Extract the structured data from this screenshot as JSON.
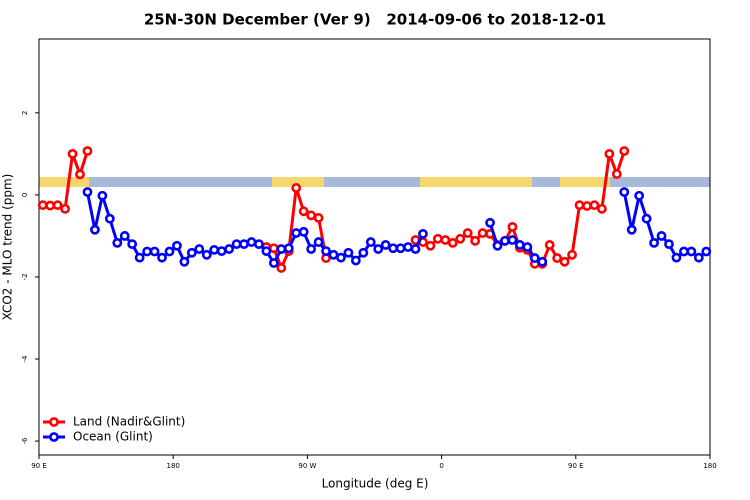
{
  "chart_data": {
    "type": "line",
    "title": "25N-30N December (Ver 9)   2014-09-06 to 2018-12-01",
    "x_label": "Longitude (deg E)",
    "y_label": "XCO2 - MLO trend (ppm)",
    "xlim": [
      90,
      540
    ],
    "ylim": [
      -6.34,
      3.8
    ],
    "xticks": [
      {
        "value": 90,
        "label": "90 E"
      },
      180,
      {
        "value": 270,
        "label": "90 W"
      },
      {
        "value": 360,
        "label": "0"
      },
      {
        "value": 450,
        "label": "90 E"
      },
      {
        "value": 540,
        "label": "180"
      }
    ],
    "yticks": [
      -6,
      -4,
      -2,
      0,
      2
    ],
    "legend": "bottom-left",
    "x": [
      92.5,
      97.5,
      102.5,
      107.5,
      112.5,
      117.5,
      122.5,
      127.5,
      132.5,
      137.5,
      142.5,
      147.5,
      152.5,
      157.5,
      162.5,
      167.5,
      172.5,
      177.5,
      182.5,
      187.5,
      192.5,
      197.5,
      202.5,
      207.5,
      212.5,
      217.5,
      222.5,
      227.5,
      232.5,
      237.5,
      242.5,
      247.5,
      252.5,
      257.5,
      262.5,
      267.5,
      272.5,
      277.5,
      282.5,
      287.5,
      292.5,
      297.5,
      302.5,
      307.5,
      312.5,
      317.5,
      322.5,
      327.5,
      332.5,
      337.5,
      342.5,
      347.5,
      352.5,
      357.5,
      362.5,
      367.5,
      372.5,
      377.5,
      382.5,
      387.5,
      392.5,
      397.5,
      402.5,
      407.5,
      412.5,
      417.5,
      422.5,
      427.5,
      432.5,
      437.5,
      442.5,
      447.5,
      452.5,
      457.5,
      462.5,
      467.5,
      472.5,
      477.5,
      482.5,
      487.5,
      492.5,
      497.5,
      502.5,
      507.5,
      512.5,
      517.5,
      522.5,
      527.5,
      532.5,
      537.5
    ],
    "series": [
      {
        "name": "Land (Nadir&Glint)",
        "color": "#ff0000",
        "values": [
          -0.25,
          -0.26,
          -0.25,
          -0.34,
          1.0,
          0.5,
          1.07,
          null,
          null,
          null,
          null,
          null,
          null,
          null,
          null,
          null,
          null,
          null,
          null,
          null,
          null,
          null,
          null,
          null,
          null,
          null,
          null,
          null,
          null,
          null,
          -1.27,
          -1.3,
          -1.78,
          -1.37,
          0.17,
          -0.4,
          -0.5,
          -0.56,
          -1.54,
          null,
          null,
          null,
          null,
          null,
          null,
          null,
          null,
          null,
          null,
          null,
          -1.1,
          -1.15,
          -1.24,
          -1.07,
          -1.1,
          -1.17,
          -1.07,
          -0.93,
          -1.12,
          -0.93,
          -0.95,
          -1.22,
          -1.12,
          -0.78,
          -1.29,
          -1.34,
          -1.68,
          -1.68,
          -1.22,
          -1.54,
          -1.63,
          -1.46,
          -0.25,
          -0.27,
          -0.25,
          -0.34,
          1.0,
          0.51,
          1.07,
          null,
          null,
          null,
          null,
          null,
          null,
          null,
          null,
          null,
          null,
          null
        ]
      },
      {
        "name": "Ocean (Glint)",
        "color": "#0000ff",
        "values": [
          null,
          null,
          null,
          null,
          null,
          null,
          0.07,
          -0.85,
          -0.02,
          -0.58,
          -1.17,
          -1.0,
          -1.2,
          -1.53,
          -1.38,
          -1.38,
          -1.53,
          -1.38,
          -1.24,
          -1.63,
          -1.41,
          -1.32,
          -1.46,
          -1.34,
          -1.37,
          -1.32,
          -1.2,
          -1.2,
          -1.15,
          -1.2,
          -1.37,
          -1.66,
          -1.32,
          -1.3,
          -0.93,
          -0.9,
          -1.32,
          -1.15,
          -1.37,
          -1.46,
          -1.53,
          -1.41,
          -1.6,
          -1.41,
          -1.15,
          -1.32,
          -1.22,
          -1.3,
          -1.3,
          -1.27,
          -1.32,
          -0.95,
          null,
          null,
          null,
          null,
          null,
          null,
          null,
          null,
          -0.68,
          -1.24,
          -1.12,
          -1.1,
          -1.22,
          -1.27,
          -1.54,
          -1.63,
          null,
          null,
          null,
          null,
          null,
          null,
          null,
          null,
          null,
          null,
          0.07,
          -0.85,
          -0.02,
          -0.58,
          -1.17,
          -1.0,
          -1.2,
          -1.53,
          -1.38,
          -1.38,
          -1.53,
          -1.38
        ]
      }
    ]
  }
}
